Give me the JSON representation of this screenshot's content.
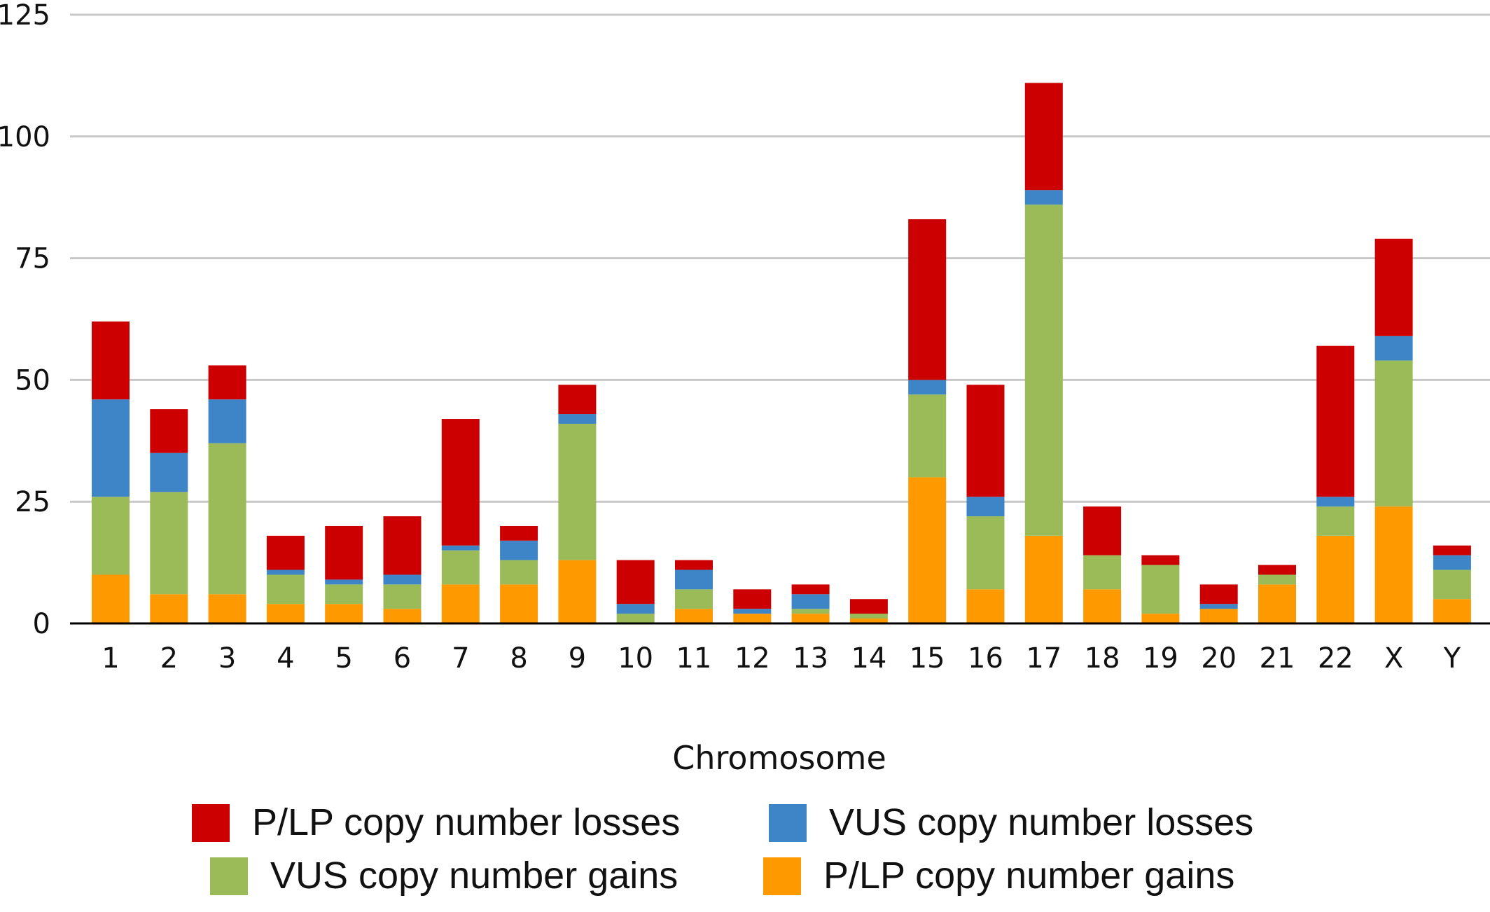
{
  "chart_data": {
    "type": "bar",
    "stacked": true,
    "xlabel": "Chromosome",
    "ylabel": "",
    "ylim": [
      0,
      125
    ],
    "yticks": [
      0,
      25,
      50,
      75,
      100,
      125
    ],
    "grid": true,
    "legend_position": "bottom",
    "categories": [
      "1",
      "2",
      "3",
      "4",
      "5",
      "6",
      "7",
      "8",
      "9",
      "10",
      "11",
      "12",
      "13",
      "14",
      "15",
      "16",
      "17",
      "18",
      "19",
      "20",
      "21",
      "22",
      "X",
      "Y"
    ],
    "series": [
      {
        "name": "P/LP copy number gains",
        "color": "#FF9900",
        "values": [
          10,
          6,
          6,
          4,
          4,
          3,
          8,
          8,
          13,
          0,
          3,
          2,
          2,
          1,
          30,
          7,
          18,
          7,
          2,
          3,
          8,
          18,
          24,
          5
        ]
      },
      {
        "name": "VUS copy number gains",
        "color": "#9BBB59",
        "values": [
          16,
          21,
          31,
          6,
          4,
          5,
          7,
          5,
          28,
          2,
          4,
          0,
          1,
          1,
          17,
          15,
          68,
          7,
          10,
          0,
          2,
          6,
          30,
          6
        ]
      },
      {
        "name": "VUS copy number losses",
        "color": "#3D85C6",
        "values": [
          20,
          8,
          9,
          1,
          1,
          2,
          1,
          4,
          2,
          2,
          4,
          1,
          3,
          0,
          3,
          4,
          3,
          0,
          0,
          1,
          0,
          2,
          5,
          3
        ]
      },
      {
        "name": "P/LP copy number losses",
        "color": "#CC0000",
        "values": [
          16,
          9,
          7,
          7,
          11,
          12,
          26,
          3,
          6,
          9,
          2,
          4,
          2,
          3,
          33,
          23,
          22,
          10,
          2,
          4,
          2,
          31,
          20,
          2
        ]
      }
    ],
    "legend_order": [
      3,
      2,
      1,
      0
    ]
  }
}
